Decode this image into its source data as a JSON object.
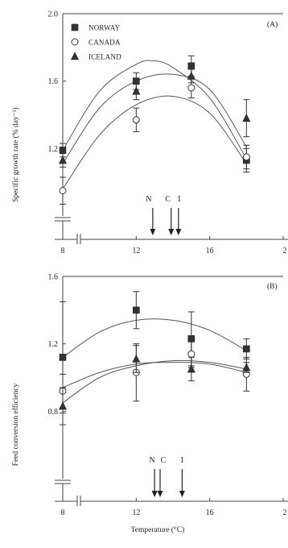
{
  "chart_data": [
    {
      "panel": "(A)",
      "type": "scatter",
      "ylabel": "Specific growth rate (% day⁻¹)",
      "xlabel": "",
      "x": [
        8,
        12,
        15,
        18
      ],
      "xlim": [
        8,
        20
      ],
      "x_ticks": [
        "8",
        "12",
        "16",
        "2"
      ],
      "ylim": [
        0.8,
        2.0
      ],
      "y_ticks": [
        "1.2",
        "1.6",
        "2.0"
      ],
      "legend_position": "top-left",
      "series": [
        {
          "name": "NORWAY",
          "marker": "square-filled",
          "values": [
            1.19,
            1.6,
            1.69,
            1.13
          ],
          "errors": [
            0.04,
            0.05,
            0.06,
            0.07
          ],
          "fit": [
            [
              8,
              1.19
            ],
            [
              10,
              1.54
            ],
            [
              12,
              1.7
            ],
            [
              13,
              1.72
            ],
            [
              14,
              1.68
            ],
            [
              16,
              1.5
            ],
            [
              18,
              1.14
            ]
          ]
        },
        {
          "name": "CANADA",
          "marker": "circle-open",
          "values": [
            0.95,
            1.37,
            1.56,
            1.15
          ],
          "errors": [
            0.08,
            0.07,
            0.06,
            0.07
          ],
          "fit": [
            [
              8,
              0.96
            ],
            [
              10,
              1.28
            ],
            [
              12,
              1.46
            ],
            [
              14,
              1.51
            ],
            [
              16,
              1.41
            ],
            [
              18,
              1.11
            ]
          ]
        },
        {
          "name": "ICELAND",
          "marker": "triangle-filled",
          "values": [
            1.13,
            1.54,
            1.63,
            1.38
          ],
          "errors": [
            0.04,
            0.05,
            0.04,
            0.11
          ],
          "fit": [
            [
              8,
              1.11
            ],
            [
              10,
              1.44
            ],
            [
              12,
              1.6
            ],
            [
              14,
              1.64
            ],
            [
              16,
              1.55
            ],
            [
              18,
              1.21
            ]
          ]
        }
      ],
      "arrows": [
        {
          "label": "N",
          "x": 12.9
        },
        {
          "label": "C",
          "x": 13.9
        },
        {
          "label": "I",
          "x": 14.3
        }
      ]
    },
    {
      "panel": "(B)",
      "type": "scatter",
      "ylabel": "Feed conversion efficiency",
      "xlabel": "Temperature (°C)",
      "x": [
        8,
        12,
        15,
        18
      ],
      "xlim": [
        8,
        20
      ],
      "x_ticks": [
        "8",
        "12",
        "16",
        "2"
      ],
      "ylim": [
        0.4,
        1.6
      ],
      "y_ticks": [
        "0.8",
        "1.2",
        "1.6"
      ],
      "series": [
        {
          "name": "NORWAY",
          "marker": "square-filled",
          "values": [
            1.12,
            1.4,
            1.23,
            1.17
          ],
          "errors": [
            0.33,
            0.11,
            0.16,
            0.06
          ],
          "fit": [
            [
              8,
              1.12
            ],
            [
              10,
              1.27
            ],
            [
              12,
              1.34
            ],
            [
              14,
              1.34
            ],
            [
              16,
              1.28
            ],
            [
              18,
              1.16
            ]
          ]
        },
        {
          "name": "CANADA",
          "marker": "circle-open",
          "values": [
            0.92,
            1.03,
            1.14,
            1.02
          ],
          "errors": [
            0.1,
            0.17,
            0.08,
            0.1
          ],
          "fit": [
            [
              8,
              0.94
            ],
            [
              10,
              1.03
            ],
            [
              12,
              1.08
            ],
            [
              14,
              1.09
            ],
            [
              16,
              1.08
            ],
            [
              18,
              1.03
            ]
          ]
        },
        {
          "name": "ICELAND",
          "marker": "triangle-filled",
          "values": [
            0.83,
            1.11,
            1.05,
            1.06
          ],
          "errors": [
            0.11,
            0.08,
            0.07,
            0.03
          ],
          "fit": [
            [
              8,
              0.85
            ],
            [
              10,
              1.0
            ],
            [
              12,
              1.07
            ],
            [
              14,
              1.1
            ],
            [
              16,
              1.09
            ],
            [
              18,
              1.05
            ]
          ]
        }
      ],
      "arrows": [
        {
          "label": "N",
          "x": 13.0
        },
        {
          "label": "C",
          "x": 13.3
        },
        {
          "label": "I",
          "x": 14.5
        }
      ]
    }
  ]
}
